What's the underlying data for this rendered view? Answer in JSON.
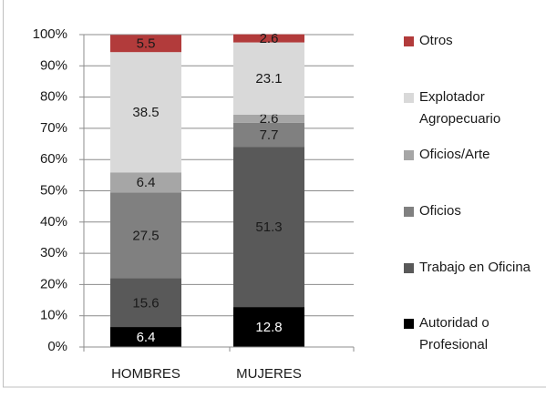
{
  "chart_data": {
    "type": "stacked_bar",
    "categories": [
      "HOMBRES",
      "MUJERES"
    ],
    "series": [
      {
        "name": "Autoridad o Profesional",
        "color": "#000000",
        "label_color": "#ffffff",
        "values": [
          6.4,
          12.8
        ]
      },
      {
        "name": "Trabajo en Oficina",
        "color": "#595959",
        "label_color": "#1a1a1a",
        "values": [
          15.6,
          51.3
        ]
      },
      {
        "name": "Oficios",
        "color": "#808080",
        "label_color": "#1a1a1a",
        "values": [
          27.5,
          7.7
        ]
      },
      {
        "name": "Oficios/Arte",
        "color": "#a6a6a6",
        "label_color": "#1a1a1a",
        "values": [
          6.4,
          2.6
        ]
      },
      {
        "name": "Explotador Agropecuario",
        "color": "#d9d9d9",
        "label_color": "#1a1a1a",
        "values": [
          38.5,
          23.1
        ]
      },
      {
        "name": "Otros",
        "color": "#b23b3b",
        "label_color": "#1a1a1a",
        "values": [
          5.5,
          2.6
        ]
      }
    ],
    "ylim": [
      0,
      100
    ],
    "yticks": [
      {
        "value": 0,
        "label": "0%"
      },
      {
        "value": 10,
        "label": "10%"
      },
      {
        "value": 20,
        "label": "20%"
      },
      {
        "value": 30,
        "label": "30%"
      },
      {
        "value": 40,
        "label": "40%"
      },
      {
        "value": 50,
        "label": "50%"
      },
      {
        "value": 60,
        "label": "60%"
      },
      {
        "value": 70,
        "label": "70%"
      },
      {
        "value": 80,
        "label": "80%"
      },
      {
        "value": 90,
        "label": "90%"
      },
      {
        "value": 100,
        "label": "100%"
      }
    ],
    "grid": true,
    "legend": "right"
  }
}
